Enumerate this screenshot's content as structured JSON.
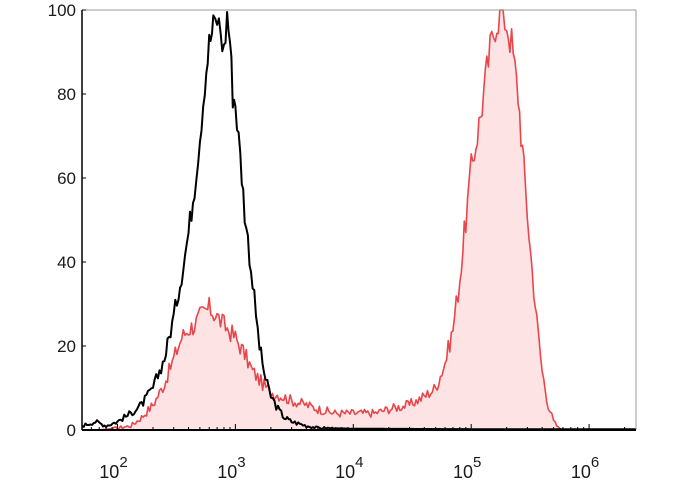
{
  "chart_data": {
    "type": "area",
    "title": "",
    "xlabel": "",
    "ylabel": "",
    "x_scale": "log10",
    "xlim": [
      50,
      2500000
    ],
    "ylim": [
      0,
      100
    ],
    "grid": false,
    "legend": "none",
    "x_ticks": [
      {
        "base": "10",
        "exp": "2",
        "value": 100
      },
      {
        "base": "10",
        "exp": "3",
        "value": 1000
      },
      {
        "base": "10",
        "exp": "4",
        "value": 10000
      },
      {
        "base": "10",
        "exp": "5",
        "value": 100000
      },
      {
        "base": "10",
        "exp": "6",
        "value": 1000000
      }
    ],
    "y_ticks": [
      {
        "label": "0",
        "value": 0
      },
      {
        "label": "20",
        "value": 20
      },
      {
        "label": "40",
        "value": 40
      },
      {
        "label": "60",
        "value": 60
      },
      {
        "label": "80",
        "value": 80
      },
      {
        "label": "100",
        "value": 100
      }
    ],
    "series": [
      {
        "style": "line",
        "color": "#000000",
        "points": [
          [
            50,
            1
          ],
          [
            65,
            2
          ],
          [
            80,
            1
          ],
          [
            100,
            2
          ],
          [
            130,
            4
          ],
          [
            160,
            6
          ],
          [
            200,
            10
          ],
          [
            250,
            17
          ],
          [
            300,
            27
          ],
          [
            350,
            37
          ],
          [
            400,
            47
          ],
          [
            450,
            58
          ],
          [
            500,
            70
          ],
          [
            550,
            83
          ],
          [
            600,
            92
          ],
          [
            650,
            96
          ],
          [
            700,
            98
          ],
          [
            750,
            95
          ],
          [
            800,
            90
          ],
          [
            850,
            99
          ],
          [
            900,
            93
          ],
          [
            950,
            80
          ],
          [
            1000,
            78
          ],
          [
            1100,
            65
          ],
          [
            1200,
            52
          ],
          [
            1400,
            35
          ],
          [
            1600,
            20
          ],
          [
            1800,
            12
          ],
          [
            2000,
            8
          ],
          [
            2300,
            5
          ],
          [
            2600,
            3
          ],
          [
            3000,
            2
          ],
          [
            4000,
            1
          ],
          [
            5000,
            0.5
          ],
          [
            10000,
            0.3
          ],
          [
            100000,
            0.2
          ],
          [
            2500000,
            0.2
          ]
        ]
      },
      {
        "style": "filled-area",
        "color": "#e8464b",
        "fill": "#fde3e3",
        "points": [
          [
            50,
            0
          ],
          [
            70,
            0
          ],
          [
            100,
            0.5
          ],
          [
            130,
            1
          ],
          [
            160,
            3
          ],
          [
            200,
            6
          ],
          [
            250,
            11
          ],
          [
            300,
            17
          ],
          [
            350,
            22
          ],
          [
            400,
            24
          ],
          [
            450,
            25
          ],
          [
            500,
            27
          ],
          [
            600,
            29
          ],
          [
            700,
            27
          ],
          [
            800,
            25
          ],
          [
            1000,
            22
          ],
          [
            1200,
            18
          ],
          [
            1400,
            14
          ],
          [
            1700,
            11
          ],
          [
            2000,
            9
          ],
          [
            2500,
            8
          ],
          [
            3000,
            7
          ],
          [
            4000,
            6
          ],
          [
            5000,
            5
          ],
          [
            7000,
            4
          ],
          [
            10000,
            4
          ],
          [
            15000,
            4
          ],
          [
            20000,
            5
          ],
          [
            30000,
            6
          ],
          [
            40000,
            8
          ],
          [
            50000,
            10
          ],
          [
            60000,
            16
          ],
          [
            70000,
            24
          ],
          [
            80000,
            36
          ],
          [
            90000,
            50
          ],
          [
            100000,
            62
          ],
          [
            120000,
            75
          ],
          [
            140000,
            88
          ],
          [
            160000,
            97
          ],
          [
            180000,
            100
          ],
          [
            200000,
            97
          ],
          [
            220000,
            92
          ],
          [
            250000,
            80
          ],
          [
            280000,
            62
          ],
          [
            320000,
            42
          ],
          [
            360000,
            26
          ],
          [
            400000,
            14
          ],
          [
            450000,
            6
          ],
          [
            500000,
            2
          ],
          [
            550000,
            0.5
          ],
          [
            600000,
            0
          ],
          [
            2500000,
            0
          ]
        ]
      }
    ]
  }
}
